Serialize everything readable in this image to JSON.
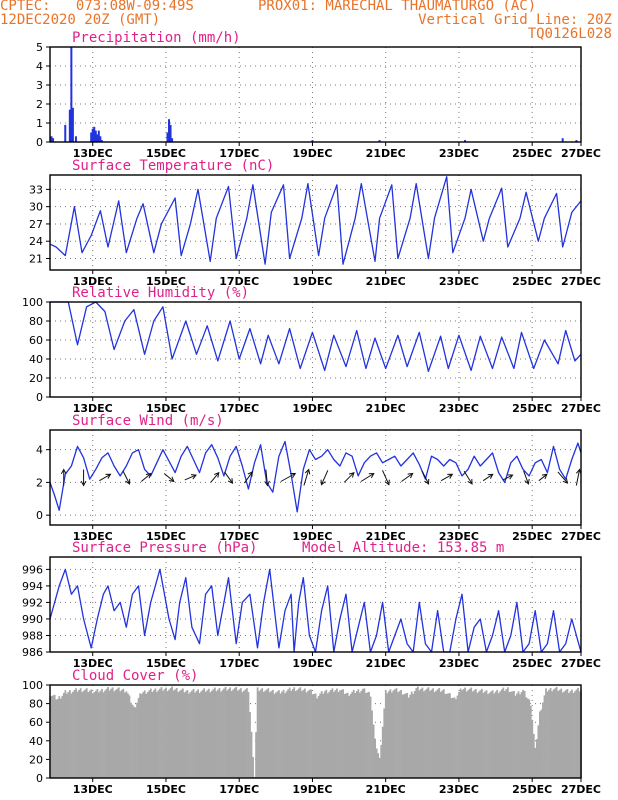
{
  "header": {
    "left_line1": "CPTEC:   073:08W-09:49S",
    "center_line1": "PROX01: MARECHAL THAUMATURGO (AC)",
    "left_line2": "12DEC2020 20Z (GMT)",
    "right_line2": "Vertical Grid Line: 20Z",
    "right_line3": "TQ0126L028"
  },
  "colors": {
    "header": "#e8742a",
    "title": "#e0218a",
    "series": "#2233dd",
    "wind": "#111111",
    "cloud": "#a8a8a8",
    "grid": "#777777"
  },
  "x_axis": {
    "start_hour": 0,
    "end_hour": 348,
    "ticks": [
      {
        "label": "13DEC",
        "hour": 28
      },
      {
        "label": "15DEC",
        "hour": 76
      },
      {
        "label": "17DEC",
        "hour": 124
      },
      {
        "label": "19DEC",
        "hour": 172
      },
      {
        "label": "21DEC",
        "hour": 220
      },
      {
        "label": "23DEC",
        "hour": 268
      },
      {
        "label": "25DEC",
        "hour": 316
      },
      {
        "label": "27DEC",
        "hour": 348
      }
    ]
  },
  "chart_data": [
    {
      "type": "bar",
      "id": "precip",
      "title": "Precipitation (mm/h)",
      "ylim": [
        0,
        5
      ],
      "yticks": [
        0,
        1,
        2,
        3,
        4,
        5
      ],
      "x": [
        1,
        2,
        10,
        13,
        14,
        15,
        17,
        27,
        28,
        29,
        30,
        31,
        32,
        33,
        34,
        77,
        78,
        79,
        80,
        172,
        216,
        272,
        336,
        345
      ],
      "values": [
        0.3,
        0.2,
        0.9,
        1.7,
        5.0,
        1.8,
        0.3,
        0.5,
        0.7,
        0.8,
        0.6,
        0.4,
        0.6,
        0.3,
        0.1,
        0.5,
        1.2,
        0.9,
        0.2,
        0.1,
        0.1,
        0.1,
        0.2,
        0.1
      ]
    },
    {
      "type": "line",
      "id": "temp",
      "title": "Surface Temperature (nC)",
      "ylim": [
        19,
        35.5
      ],
      "yticks": [
        21,
        24,
        27,
        30,
        33
      ],
      "series": [
        {
          "hours": [
            0,
            4,
            10,
            16,
            21,
            27,
            33,
            38,
            45,
            50,
            57,
            61,
            68,
            73,
            82,
            86,
            92,
            97,
            105,
            109,
            117,
            122,
            129,
            133,
            141,
            145,
            153,
            157,
            165,
            169,
            176,
            180,
            188,
            192,
            200,
            204,
            213,
            216,
            224,
            228,
            236,
            240,
            248,
            252,
            260,
            264,
            272,
            276,
            284,
            288,
            296,
            300,
            308,
            312,
            320,
            324,
            332,
            336,
            342,
            348
          ],
          "values": [
            23.5,
            23,
            21.5,
            30,
            22,
            25,
            29.3,
            23,
            31,
            22,
            28,
            30.5,
            22,
            27,
            31.5,
            21.5,
            27,
            33,
            20.5,
            28,
            33.5,
            21,
            28,
            33.8,
            20,
            29,
            33.8,
            21,
            28,
            34,
            21.5,
            28,
            33.8,
            20,
            28,
            34,
            20.5,
            28,
            33.8,
            21,
            28,
            34,
            21,
            28,
            35.2,
            22,
            28,
            33,
            24,
            28,
            33.2,
            23,
            28,
            32.5,
            24,
            28,
            32.3,
            23,
            29,
            31
          ]
        }
      ]
    },
    {
      "type": "line",
      "id": "rh",
      "title": "Relative Humidity (%)",
      "ylim": [
        0,
        100
      ],
      "yticks": [
        0,
        20,
        40,
        60,
        80,
        100
      ],
      "series": [
        {
          "hours": [
            0,
            5,
            12,
            18,
            24,
            30,
            36,
            42,
            49,
            55,
            62,
            68,
            74,
            80,
            89,
            96,
            103,
            110,
            118,
            124,
            131,
            138,
            143,
            150,
            157,
            164,
            172,
            180,
            186,
            194,
            201,
            207,
            213,
            220,
            228,
            234,
            242,
            248,
            256,
            261,
            268,
            276,
            282,
            290,
            296,
            304,
            309,
            317,
            324,
            333,
            338,
            344,
            348
          ],
          "values": [
            100,
            100,
            100,
            55,
            95,
            100,
            90,
            50,
            80,
            92,
            45,
            80,
            95,
            40,
            80,
            45,
            75,
            38,
            80,
            40,
            72,
            35,
            65,
            35,
            72,
            30,
            68,
            28,
            65,
            32,
            70,
            30,
            62,
            30,
            65,
            32,
            68,
            27,
            64,
            30,
            65,
            28,
            64,
            30,
            63,
            30,
            68,
            30,
            60,
            35,
            70,
            38,
            45
          ]
        }
      ]
    },
    {
      "type": "line",
      "id": "wind",
      "title": "Surface Wind (m/s)",
      "ylim": [
        -0.6,
        5.2
      ],
      "yticks": [
        0,
        2,
        4
      ],
      "series": [
        {
          "hours": [
            0,
            3,
            6,
            10,
            14,
            18,
            22,
            26,
            30,
            34,
            38,
            42,
            46,
            50,
            54,
            58,
            62,
            66,
            70,
            74,
            78,
            82,
            86,
            90,
            94,
            98,
            102,
            106,
            110,
            114,
            118,
            122,
            126,
            130,
            134,
            138,
            142,
            146,
            150,
            154,
            158,
            162,
            166,
            170,
            174,
            178,
            182,
            186,
            190,
            194,
            198,
            202,
            206,
            210,
            214,
            218,
            222,
            226,
            230,
            234,
            238,
            242,
            246,
            250,
            254,
            258,
            262,
            266,
            270,
            274,
            278,
            282,
            286,
            290,
            294,
            298,
            302,
            306,
            310,
            314,
            318,
            322,
            326,
            330,
            334,
            338,
            342,
            346,
            348
          ],
          "values": [
            2.0,
            1.2,
            0.3,
            2.5,
            3.0,
            4.2,
            3.5,
            2.2,
            2.8,
            3.5,
            3.8,
            3.0,
            2.4,
            3.0,
            3.8,
            4.0,
            2.8,
            2.4,
            3.2,
            4.0,
            3.3,
            2.6,
            3.6,
            4.2,
            3.4,
            2.6,
            3.8,
            4.3,
            3.5,
            2.4,
            3.6,
            4.2,
            3.0,
            1.6,
            3.2,
            4.3,
            2.0,
            1.4,
            3.6,
            4.5,
            2.5,
            0.2,
            2.8,
            4.0,
            3.4,
            3.6,
            4.0,
            3.4,
            3.0,
            3.8,
            3.6,
            2.4,
            3.2,
            3.6,
            3.8,
            3.2,
            3.4,
            3.6,
            3.0,
            3.4,
            3.8,
            3.1,
            2.2,
            3.6,
            3.4,
            3.0,
            3.4,
            3.2,
            2.4,
            2.8,
            3.6,
            3.0,
            3.4,
            3.8,
            2.6,
            2.0,
            3.2,
            3.6,
            2.8,
            2.4,
            3.2,
            3.4,
            2.6,
            4.2,
            2.8,
            2.2,
            3.4,
            4.4,
            3.8
          ]
        }
      ],
      "arrows": [
        {
          "hour": 9,
          "u": 0.0,
          "v": 1.0
        },
        {
          "hour": 22,
          "u": 0.0,
          "v": -1.0
        },
        {
          "hour": 36,
          "u": 0.7,
          "v": 0.4
        },
        {
          "hour": 50,
          "u": 0.4,
          "v": -0.8
        },
        {
          "hour": 63,
          "u": 0.6,
          "v": 0.5
        },
        {
          "hour": 78,
          "u": 0.6,
          "v": -0.5
        },
        {
          "hour": 92,
          "u": 0.7,
          "v": 0.3
        },
        {
          "hour": 108,
          "u": 0.5,
          "v": 0.6
        },
        {
          "hour": 117,
          "u": 0.5,
          "v": -0.7
        },
        {
          "hour": 130,
          "u": 0.5,
          "v": 0.7
        },
        {
          "hour": 142,
          "u": 0.1,
          "v": -1.0
        },
        {
          "hour": 156,
          "u": 0.9,
          "v": 0.5
        },
        {
          "hour": 168,
          "u": 0.3,
          "v": 1.0
        },
        {
          "hour": 180,
          "u": -0.4,
          "v": -0.9
        },
        {
          "hour": 196,
          "u": 0.6,
          "v": 0.6
        },
        {
          "hour": 208,
          "u": 0.8,
          "v": 0.5
        },
        {
          "hour": 220,
          "u": 0.4,
          "v": -0.9
        },
        {
          "hour": 234,
          "u": 0.7,
          "v": 0.5
        },
        {
          "hour": 246,
          "u": 0.4,
          "v": -0.8
        },
        {
          "hour": 260,
          "u": 0.7,
          "v": 0.4
        },
        {
          "hour": 274,
          "u": 0.5,
          "v": -0.8
        },
        {
          "hour": 287,
          "u": 0.6,
          "v": 0.4
        },
        {
          "hour": 300,
          "u": 0.6,
          "v": 0.3
        },
        {
          "hour": 312,
          "u": 0.3,
          "v": -0.8
        },
        {
          "hour": 323,
          "u": 0.5,
          "v": 0.4
        },
        {
          "hour": 336,
          "u": 0.6,
          "v": -0.7
        },
        {
          "hour": 346,
          "u": 0.2,
          "v": 1.0
        }
      ]
    },
    {
      "type": "line",
      "id": "pres",
      "title": "Surface Pressure (hPa)",
      "annotation": "Model Altitude: 153.85 m",
      "ylim": [
        986,
        997.5
      ],
      "yticks": [
        986,
        988,
        990,
        992,
        994,
        996
      ],
      "series": [
        {
          "hours": [
            0,
            6,
            10,
            14,
            18,
            22,
            27,
            31,
            35,
            38,
            42,
            46,
            50,
            54,
            58,
            62,
            66,
            72,
            78,
            82,
            85,
            89,
            93,
            98,
            102,
            106,
            110,
            113,
            117,
            122,
            126,
            131,
            136,
            140,
            144,
            150,
            154,
            158,
            160,
            163,
            166,
            170,
            174,
            178,
            182,
            186,
            190,
            194,
            198,
            202,
            206,
            210,
            214,
            218,
            222,
            226,
            230,
            234,
            238,
            242,
            246,
            250,
            254,
            258,
            262,
            266,
            270,
            274,
            278,
            282,
            286,
            290,
            294,
            298,
            302,
            306,
            310,
            314,
            318,
            322,
            326,
            330,
            334,
            338,
            342,
            348
          ],
          "values": [
            990,
            994,
            996,
            993,
            994,
            990,
            986.5,
            990,
            993,
            994,
            991,
            992,
            989,
            993,
            994,
            988,
            992,
            996,
            990,
            987.5,
            992,
            995,
            989,
            987,
            993,
            994,
            988,
            991,
            995,
            987,
            992,
            993,
            986.5,
            992,
            996,
            986.5,
            991,
            993,
            986,
            992,
            995,
            988,
            986,
            991,
            994,
            986,
            990,
            993,
            986,
            989,
            992,
            986,
            988,
            992,
            986,
            988,
            990,
            987,
            986,
            992,
            987,
            986,
            991,
            986,
            986,
            990,
            993,
            986,
            989,
            990,
            986,
            988,
            991,
            986,
            988,
            992,
            986,
            987,
            991,
            986,
            987,
            991,
            986,
            987,
            990,
            986
          ]
        }
      ]
    },
    {
      "type": "bar",
      "id": "cloud",
      "title": "Cloud Cover (%)",
      "ylim": [
        0,
        100
      ],
      "yticks": [
        0,
        20,
        40,
        60,
        80,
        100
      ],
      "profile_hours": [
        0,
        5,
        10,
        20,
        30,
        40,
        50,
        55,
        60,
        70,
        80,
        90,
        100,
        110,
        120,
        130,
        134,
        136,
        140,
        150,
        160,
        170,
        175,
        180,
        190,
        195,
        200,
        205,
        210,
        213,
        216,
        220,
        225,
        230,
        235,
        240,
        250,
        258,
        265,
        270,
        280,
        290,
        300,
        305,
        310,
        315,
        318,
        321,
        325,
        330,
        340,
        348
      ],
      "profile_values": [
        90,
        85,
        92,
        95,
        93,
        96,
        94,
        75,
        92,
        95,
        96,
        93,
        94,
        95,
        96,
        94,
        2,
        95,
        95,
        92,
        96,
        94,
        88,
        93,
        95,
        90,
        93,
        95,
        90,
        40,
        20,
        92,
        95,
        93,
        88,
        96,
        95,
        94,
        85,
        96,
        94,
        92,
        96,
        90,
        94,
        80,
        30,
        70,
        94,
        96,
        93,
        95
      ]
    }
  ]
}
